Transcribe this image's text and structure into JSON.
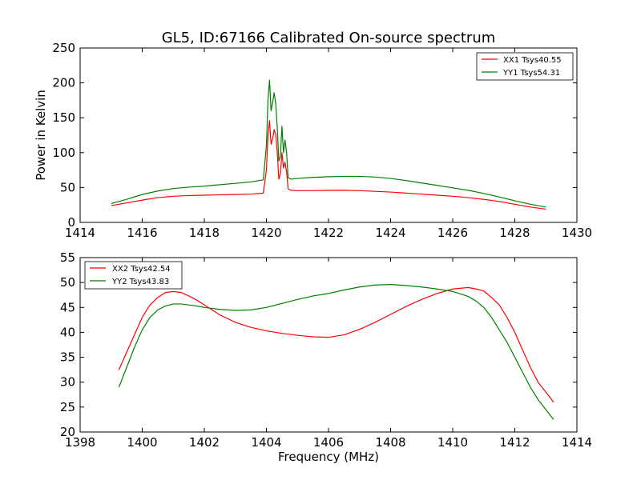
{
  "chart_data": [
    {
      "type": "line",
      "title": "GL5, ID:67166 Calibrated On-source spectrum",
      "xlabel": "",
      "ylabel": "Power in Kelvin",
      "xlim": [
        1414,
        1430
      ],
      "ylim": [
        0,
        250
      ],
      "xticks": [
        "1414",
        "1416",
        "1418",
        "1420",
        "1422",
        "1424",
        "1426",
        "1428",
        "1430"
      ],
      "yticks": [
        "0",
        "50",
        "100",
        "150",
        "200",
        "250"
      ],
      "grid": false,
      "legend_position": "top-right",
      "series": [
        {
          "name": "XX1 Tsys40.55",
          "color": "#ff0000",
          "x": [
            1415,
            1415.5,
            1416,
            1416.5,
            1417,
            1417.5,
            1418,
            1418.5,
            1419,
            1419.5,
            1419.9,
            1420.0,
            1420.05,
            1420.1,
            1420.15,
            1420.2,
            1420.25,
            1420.3,
            1420.35,
            1420.4,
            1420.45,
            1420.5,
            1420.55,
            1420.6,
            1420.65,
            1420.7,
            1420.8,
            1421,
            1421.5,
            1422,
            1422.5,
            1423,
            1423.5,
            1424,
            1424.5,
            1425,
            1425.5,
            1426,
            1426.5,
            1427,
            1427.5,
            1428,
            1428.5,
            1429
          ],
          "values": [
            24,
            28,
            32,
            35.5,
            37.5,
            38.5,
            39,
            39.5,
            40,
            40.5,
            42,
            75,
            125,
            146,
            112,
            120,
            133,
            126,
            100,
            62,
            70,
            100,
            78,
            86,
            72,
            48,
            46,
            45.5,
            45.5,
            46,
            46,
            45.5,
            44.5,
            43.5,
            42,
            40.5,
            39,
            37.5,
            35.5,
            33,
            30,
            26,
            22,
            19
          ]
        },
        {
          "name": "YY1 Tsys54.31",
          "color": "#008000",
          "x": [
            1415,
            1415.5,
            1416,
            1416.5,
            1417,
            1417.5,
            1418,
            1418.5,
            1419,
            1419.5,
            1419.9,
            1420.0,
            1420.05,
            1420.1,
            1420.15,
            1420.2,
            1420.25,
            1420.3,
            1420.35,
            1420.4,
            1420.45,
            1420.5,
            1420.55,
            1420.6,
            1420.65,
            1420.7,
            1420.8,
            1421,
            1421.5,
            1422,
            1422.5,
            1423,
            1423.5,
            1424,
            1424.5,
            1425,
            1425.5,
            1426,
            1426.5,
            1427,
            1427.5,
            1428,
            1428.5,
            1429
          ],
          "values": [
            27,
            33,
            40,
            45,
            48.5,
            50.5,
            52,
            54,
            56,
            58,
            61,
            110,
            175,
            204,
            160,
            172,
            186,
            170,
            135,
            88,
            95,
            138,
            100,
            118,
            100,
            64,
            62,
            63,
            64.5,
            65.5,
            66,
            66,
            65,
            63,
            60,
            56.5,
            53,
            49.5,
            46,
            41.5,
            36.5,
            31,
            26,
            22
          ]
        }
      ]
    },
    {
      "type": "line",
      "title": "",
      "xlabel": "Frequency (MHz)",
      "ylabel": "",
      "xlim": [
        1398,
        1414
      ],
      "ylim": [
        20,
        55
      ],
      "xticks": [
        "1398",
        "1400",
        "1402",
        "1404",
        "1406",
        "1408",
        "1410",
        "1412",
        "1414"
      ],
      "yticks": [
        "20",
        "25",
        "30",
        "35",
        "40",
        "45",
        "50",
        "55"
      ],
      "grid": false,
      "legend_position": "top-left",
      "series": [
        {
          "name": "XX2 Tsys42.54",
          "color": "#ff0000",
          "x": [
            1399.25,
            1399.5,
            1399.75,
            1400,
            1400.25,
            1400.5,
            1400.75,
            1401,
            1401.25,
            1401.5,
            1401.75,
            1402,
            1402.5,
            1403,
            1403.5,
            1404,
            1404.5,
            1405,
            1405.5,
            1406,
            1406.5,
            1407,
            1407.5,
            1408,
            1408.5,
            1409,
            1409.5,
            1410,
            1410.5,
            1410.75,
            1411,
            1411.25,
            1411.5,
            1411.75,
            1412,
            1412.25,
            1412.5,
            1412.75,
            1413,
            1413.25
          ],
          "values": [
            32.5,
            36,
            39.5,
            43,
            45.5,
            47,
            48,
            48.2,
            48,
            47.3,
            46.5,
            45.5,
            43.5,
            42,
            41,
            40.3,
            39.8,
            39.4,
            39.1,
            39,
            39.5,
            40.6,
            42,
            43.6,
            45.2,
            46.6,
            47.8,
            48.7,
            49,
            48.7,
            48.3,
            47,
            45.5,
            43,
            40,
            36.5,
            33,
            30,
            28,
            26
          ]
        },
        {
          "name": "YY2 Tsys43.83",
          "color": "#008000",
          "x": [
            1399.25,
            1399.5,
            1399.75,
            1400,
            1400.25,
            1400.5,
            1400.75,
            1401,
            1401.25,
            1401.5,
            1401.75,
            1402,
            1402.5,
            1403,
            1403.5,
            1404,
            1404.5,
            1405,
            1405.5,
            1406,
            1406.5,
            1407,
            1407.5,
            1408,
            1408.5,
            1409,
            1409.5,
            1410,
            1410.5,
            1410.75,
            1411,
            1411.25,
            1411.5,
            1411.75,
            1412,
            1412.25,
            1412.5,
            1412.75,
            1413,
            1413.25
          ],
          "values": [
            29,
            33,
            37,
            40.5,
            43,
            44.5,
            45.3,
            45.7,
            45.7,
            45.5,
            45.3,
            45,
            44.6,
            44.4,
            44.5,
            45,
            45.8,
            46.6,
            47.3,
            47.8,
            48.5,
            49.1,
            49.5,
            49.6,
            49.4,
            49.1,
            48.7,
            48.2,
            47.2,
            46.3,
            45,
            43,
            40.5,
            38,
            35,
            32,
            29,
            26.5,
            24.5,
            22.5
          ]
        }
      ]
    }
  ]
}
